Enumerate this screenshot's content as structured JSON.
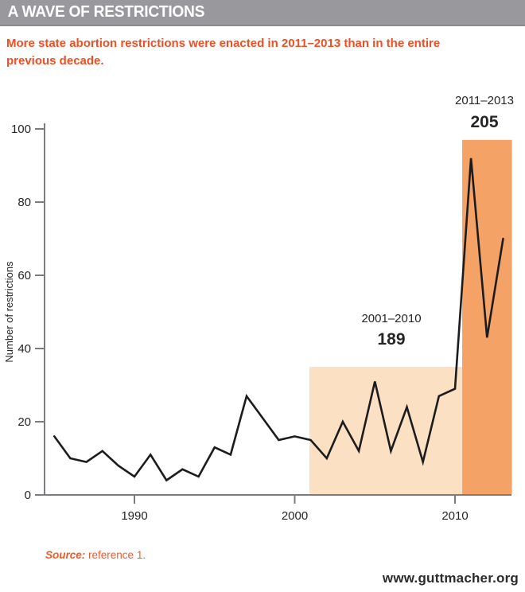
{
  "header": {
    "title": "A WAVE OF RESTRICTIONS"
  },
  "subtitle": "More state abortion restrictions were enacted in 2011–2013 than in the entire previous decade.",
  "source": {
    "label": "Source:",
    "text": "reference 1."
  },
  "footer": {
    "url": "www.guttmacher.org"
  },
  "colors": {
    "header_bg": "#99989d",
    "accent_orange": "#f04e23",
    "light_box": "#fbe0c4",
    "dark_box": "#f4a265",
    "axis_gray": "#7c7b80",
    "line_black": "#1c1c1e",
    "text_dark": "#252527"
  },
  "chart_data": {
    "type": "line",
    "title": "",
    "xlabel": "",
    "ylabel": "Number of restrictions",
    "ylim": [
      0,
      100
    ],
    "yticks": [
      0,
      20,
      40,
      60,
      80,
      100
    ],
    "xticks": [
      1990,
      2000,
      2010
    ],
    "grid": false,
    "legend": "none",
    "x": [
      1985,
      1986,
      1987,
      1988,
      1989,
      1990,
      1991,
      1992,
      1993,
      1994,
      1995,
      1996,
      1997,
      1998,
      1999,
      2000,
      2001,
      2002,
      2003,
      2004,
      2005,
      2006,
      2007,
      2008,
      2009,
      2010,
      2011,
      2012,
      2013
    ],
    "values": [
      16,
      10,
      9,
      12,
      8,
      5,
      11,
      4,
      7,
      5,
      13,
      11,
      27,
      21,
      15,
      16,
      15,
      10,
      20,
      12,
      31,
      12,
      24,
      9,
      27,
      29,
      92,
      43,
      70
    ],
    "highlights": [
      {
        "name": "period-2001-2010",
        "label": "2001–2010",
        "total": "189",
        "year_start": 2000.92,
        "year_end": 2010.45,
        "box_top_value": 35,
        "color": "#fbe0c4"
      },
      {
        "name": "period-2011-2013",
        "label": "2011–2013",
        "total": "205",
        "year_start": 2010.45,
        "year_end": 2013.55,
        "box_top_value": 97,
        "color": "#f4a265"
      }
    ]
  }
}
